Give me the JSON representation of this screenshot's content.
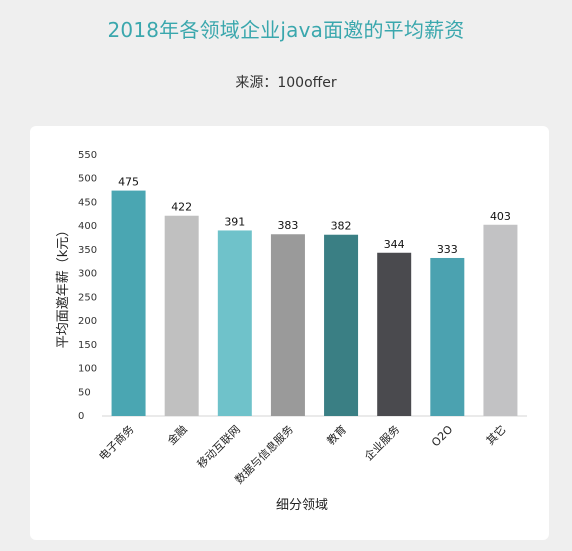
{
  "header": {
    "title": "2018年各领域企业java面邀的平均薪资",
    "subtitle": "来源：100offer"
  },
  "chart_data": {
    "type": "bar",
    "categories": [
      "电子商务",
      "金融",
      "移动互联网",
      "数据与信息服务",
      "教育",
      "企业服务",
      "O2O",
      "其它"
    ],
    "values": [
      475,
      422,
      391,
      383,
      382,
      344,
      333,
      403
    ],
    "colors": [
      "#4aa6b2",
      "#c0c0c0",
      "#6fc2ca",
      "#9a9a9a",
      "#3a7f84",
      "#4a4a4e",
      "#4ba2b0",
      "#c2c2c4"
    ],
    "title": "2018年各领域企业java面邀的平均薪资",
    "xlabel": "细分领域",
    "ylabel": "平均面邀年薪（k元）",
    "ylim": [
      0,
      550
    ],
    "yticks": [
      0,
      50,
      100,
      150,
      200,
      250,
      300,
      350,
      400,
      450,
      500,
      550
    ]
  }
}
